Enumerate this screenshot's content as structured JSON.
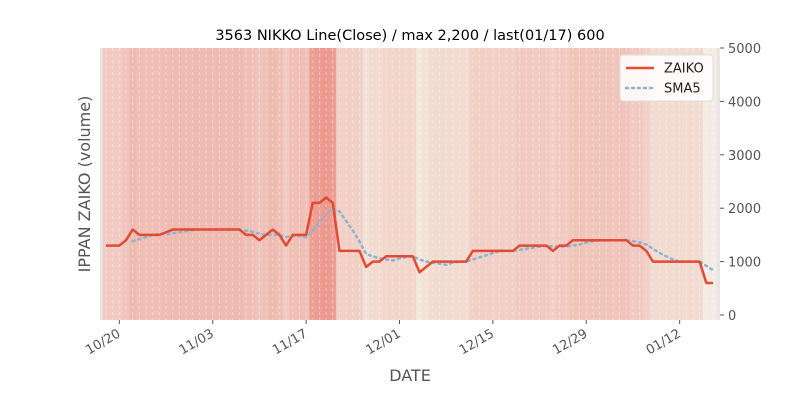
{
  "chart_data": {
    "type": "line",
    "title": "3563 NIKKO Line(Close) / max 2,200 / last(01/17) 600",
    "xlabel": "DATE",
    "ylabel": "IPPAN ZAIKO (volume)",
    "ylim": [
      0,
      5000
    ],
    "yticks": [
      "0",
      "1000",
      "2000",
      "3000",
      "4000",
      "5000"
    ],
    "ytick_values": [
      0,
      1000,
      2000,
      3000,
      4000,
      5000
    ],
    "y_axis_side": "right",
    "xticks": [
      {
        "label": "10/20",
        "date": "10/20"
      },
      {
        "label": "11/03",
        "date": "11/03"
      },
      {
        "label": "11/17",
        "date": "11/17"
      },
      {
        "label": "12/01",
        "date": "12/01"
      },
      {
        "label": "12/15",
        "date": "12/15"
      },
      {
        "label": "12/29",
        "date": "12/29"
      },
      {
        "label": "01/12",
        "date": "01/12"
      }
    ],
    "legend_position": "top-right",
    "grid": true,
    "series": [
      {
        "name": "ZAIKO",
        "color": "#e24a33",
        "style": "solid",
        "x": [
          "10/18",
          "10/19",
          "10/20",
          "10/21",
          "10/22",
          "10/23",
          "10/24",
          "10/25",
          "10/26",
          "10/27",
          "10/28",
          "10/29",
          "10/30",
          "10/31",
          "11/01",
          "11/02",
          "11/03",
          "11/04",
          "11/05",
          "11/06",
          "11/07",
          "11/08",
          "11/09",
          "11/10",
          "11/11",
          "11/12",
          "11/13",
          "11/14",
          "11/15",
          "11/16",
          "11/17",
          "11/18",
          "11/19",
          "11/20",
          "11/21",
          "11/22",
          "11/23",
          "11/24",
          "11/25",
          "11/26",
          "11/27",
          "11/28",
          "11/29",
          "11/30",
          "12/01",
          "12/02",
          "12/03",
          "12/04",
          "12/05",
          "12/06",
          "12/07",
          "12/08",
          "12/09",
          "12/10",
          "12/11",
          "12/12",
          "12/13",
          "12/14",
          "12/15",
          "12/16",
          "12/17",
          "12/18",
          "12/19",
          "12/20",
          "12/21",
          "12/22",
          "12/23",
          "12/24",
          "12/25",
          "12/26",
          "12/27",
          "12/28",
          "12/29",
          "12/30",
          "12/31",
          "01/01",
          "01/02",
          "01/03",
          "01/04",
          "01/05",
          "01/06",
          "01/07",
          "01/08",
          "01/09",
          "01/10",
          "01/11",
          "01/12",
          "01/13",
          "01/14",
          "01/15",
          "01/16",
          "01/17"
        ],
        "values": [
          1300,
          1300,
          1300,
          1400,
          1600,
          1500,
          1500,
          1500,
          1500,
          1550,
          1600,
          1600,
          1600,
          1600,
          1600,
          1600,
          1600,
          1600,
          1600,
          1600,
          1600,
          1500,
          1500,
          1400,
          1500,
          1600,
          1500,
          1300,
          1500,
          1500,
          1500,
          2100,
          2100,
          2200,
          2100,
          1200,
          1200,
          1200,
          1200,
          900,
          1000,
          1000,
          1100,
          1100,
          1100,
          1100,
          1100,
          800,
          900,
          1000,
          1000,
          1000,
          1000,
          1000,
          1000,
          1200,
          1200,
          1200,
          1200,
          1200,
          1200,
          1200,
          1300,
          1300,
          1300,
          1300,
          1300,
          1200,
          1300,
          1300,
          1400,
          1400,
          1400,
          1400,
          1400,
          1400,
          1400,
          1400,
          1400,
          1300,
          1300,
          1200,
          1000,
          1000,
          1000,
          1000,
          1000,
          1000,
          1000,
          1000,
          600,
          600
        ]
      },
      {
        "name": "SMA5",
        "color": "#8eb4cf",
        "style": "dotted",
        "window": 5
      }
    ]
  }
}
